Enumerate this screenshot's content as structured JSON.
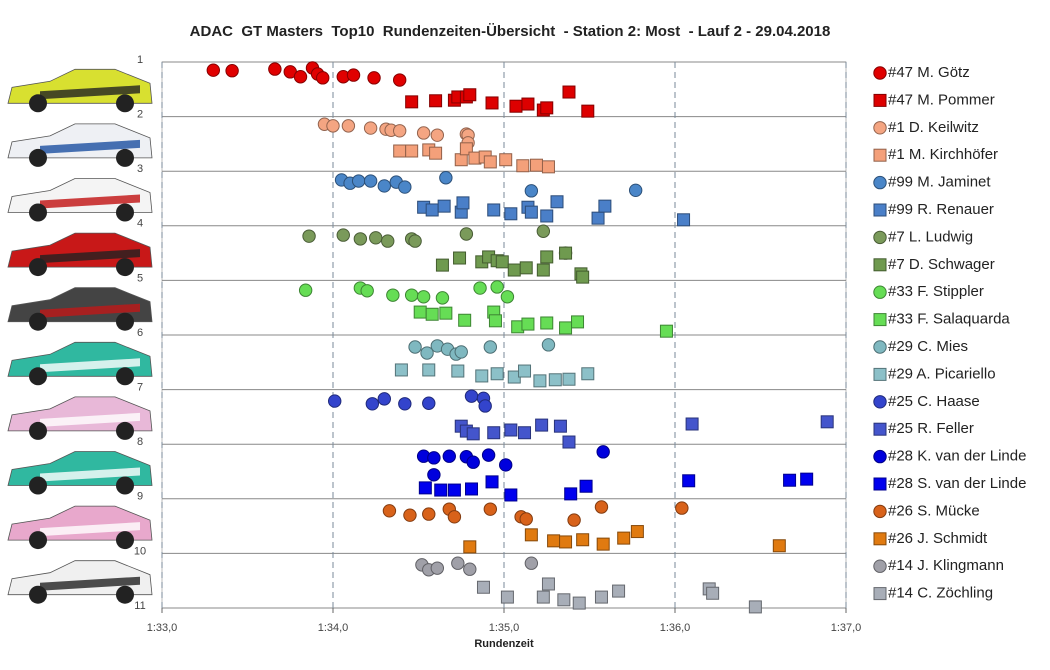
{
  "chart_data": {
    "type": "scatter",
    "title": "ADAC  GT Masters  Top10  Rundenzeiten-Übersicht  - Station 2: Most  - Lauf 2 - 29.04.2018",
    "x_label": "Rundenzeit",
    "xlim": [
      93,
      97
    ],
    "xticks": [
      {
        "value": 93,
        "label": "1:33,0"
      },
      {
        "value": 94,
        "label": "1:34,0"
      },
      {
        "value": 95,
        "label": "1:35,0"
      },
      {
        "value": 96,
        "label": "1:36,0"
      },
      {
        "value": 97,
        "label": "1:37,0"
      }
    ],
    "ylim": [
      1,
      11
    ],
    "y_inverted": true,
    "yticks": [
      1,
      2,
      3,
      4,
      5,
      6,
      7,
      8,
      9,
      10,
      11
    ],
    "x_grid": true,
    "y_grid": true,
    "legend": "right",
    "series": [
      {
        "name": "#47 M. Götz",
        "color": "#e00000",
        "marker": "circle",
        "x": [
          93.3,
          93.41,
          93.66,
          93.75,
          93.81,
          93.88,
          93.91,
          93.94,
          94.06,
          94.12,
          94.24,
          94.39
        ],
        "values": [
          1.15,
          1.16,
          1.13,
          1.18,
          1.27,
          1.11,
          1.22,
          1.29,
          1.27,
          1.24,
          1.29,
          1.33
        ]
      },
      {
        "name": "#47 M. Pommer",
        "color": "#dd0000",
        "marker": "square",
        "x": [
          94.46,
          94.6,
          94.71,
          94.73,
          94.78,
          94.8,
          94.93,
          95.07,
          95.14,
          95.23,
          95.25,
          95.38,
          95.49
        ],
        "values": [
          1.73,
          1.71,
          1.7,
          1.64,
          1.64,
          1.6,
          1.75,
          1.81,
          1.77,
          1.88,
          1.84,
          1.55,
          1.9
        ]
      },
      {
        "name": "#1 D. Keilwitz",
        "color": "#f4a582",
        "marker": "circle",
        "x": [
          93.95,
          94.0,
          94.09,
          94.22,
          94.31,
          94.34,
          94.39,
          94.53,
          94.61,
          94.78,
          94.79,
          94.79
        ],
        "values": [
          2.14,
          2.17,
          2.17,
          2.21,
          2.23,
          2.25,
          2.26,
          2.3,
          2.34,
          2.32,
          2.34,
          2.48
        ]
      },
      {
        "name": "#1 M. Kirchhöfer",
        "color": "#f4a07a",
        "marker": "square",
        "x": [
          94.39,
          94.46,
          94.56,
          94.6,
          94.75,
          94.78,
          94.83,
          94.89,
          94.92,
          95.01,
          95.11,
          95.19,
          95.26
        ],
        "values": [
          2.63,
          2.63,
          2.61,
          2.67,
          2.79,
          2.59,
          2.76,
          2.74,
          2.83,
          2.79,
          2.9,
          2.89,
          2.92
        ]
      },
      {
        "name": "#99 M. Jaminet",
        "color": "#4a86c8",
        "marker": "circle",
        "x": [
          94.05,
          94.1,
          94.15,
          94.22,
          94.3,
          94.37,
          94.42,
          94.66,
          95.16,
          95.77
        ],
        "values": [
          3.16,
          3.22,
          3.18,
          3.18,
          3.27,
          3.2,
          3.29,
          3.12,
          3.36,
          3.35
        ]
      },
      {
        "name": "#99 R. Renauer",
        "color": "#4a7fc8",
        "marker": "square",
        "x": [
          94.53,
          94.58,
          94.65,
          94.75,
          94.76,
          94.94,
          95.04,
          95.14,
          95.16,
          95.25,
          95.31,
          95.55,
          95.59,
          96.05
        ],
        "values": [
          3.66,
          3.71,
          3.64,
          3.75,
          3.58,
          3.71,
          3.78,
          3.66,
          3.75,
          3.82,
          3.56,
          3.86,
          3.64,
          3.89
        ]
      },
      {
        "name": "#7 L. Ludwig",
        "color": "#7a9a5a",
        "marker": "circle",
        "x": [
          93.86,
          94.06,
          94.16,
          94.25,
          94.32,
          94.46,
          94.48,
          94.78,
          95.23,
          95.36
        ],
        "values": [
          4.19,
          4.17,
          4.24,
          4.22,
          4.28,
          4.24,
          4.28,
          4.15,
          4.1,
          4.5
        ]
      },
      {
        "name": "#7 D. Schwager",
        "color": "#6f9a4f",
        "marker": "square",
        "x": [
          94.64,
          94.74,
          94.87,
          94.91,
          94.96,
          94.99,
          95.06,
          95.13,
          95.23,
          95.25,
          95.36,
          95.45,
          95.46
        ],
        "values": [
          4.72,
          4.59,
          4.66,
          4.57,
          4.64,
          4.66,
          4.81,
          4.77,
          4.81,
          4.57,
          4.5,
          4.88,
          4.94
        ]
      },
      {
        "name": "#33 F. Stippler",
        "color": "#66dd55",
        "marker": "circle",
        "x": [
          93.84,
          94.16,
          94.2,
          94.35,
          94.46,
          94.53,
          94.64,
          94.86,
          94.96,
          95.02
        ],
        "values": [
          5.18,
          5.14,
          5.19,
          5.27,
          5.27,
          5.3,
          5.32,
          5.14,
          5.12,
          5.3
        ]
      },
      {
        "name": "#33 F. Salaquarda",
        "color": "#66dd55",
        "marker": "square",
        "x": [
          94.51,
          94.58,
          94.66,
          94.77,
          94.94,
          94.95,
          95.08,
          95.14,
          95.25,
          95.36,
          95.43,
          95.95
        ],
        "values": [
          5.58,
          5.62,
          5.6,
          5.73,
          5.58,
          5.74,
          5.85,
          5.8,
          5.78,
          5.87,
          5.76,
          5.93
        ]
      },
      {
        "name": "#29 C. Mies",
        "color": "#7fb8c0",
        "marker": "circle",
        "x": [
          94.48,
          94.55,
          94.61,
          94.67,
          94.72,
          94.75,
          94.92,
          95.26
        ],
        "values": [
          6.22,
          6.33,
          6.2,
          6.26,
          6.35,
          6.31,
          6.22,
          6.18
        ]
      },
      {
        "name": "#29 A. Picariello",
        "color": "#8cc0c8",
        "marker": "square",
        "x": [
          94.4,
          94.56,
          94.73,
          94.87,
          94.96,
          95.06,
          95.12,
          95.21,
          95.3,
          95.38,
          95.49
        ],
        "values": [
          6.64,
          6.64,
          6.66,
          6.75,
          6.71,
          6.77,
          6.66,
          6.84,
          6.82,
          6.81,
          6.71
        ]
      },
      {
        "name": "#25 C. Haase",
        "color": "#3344cc",
        "marker": "circle",
        "x": [
          94.01,
          94.23,
          94.3,
          94.42,
          94.56,
          94.81,
          94.88,
          94.89
        ],
        "values": [
          7.21,
          7.26,
          7.17,
          7.26,
          7.25,
          7.12,
          7.16,
          7.3
        ]
      },
      {
        "name": "#25 R. Feller",
        "color": "#4455cc",
        "marker": "square",
        "x": [
          94.75,
          94.78,
          94.82,
          94.94,
          95.04,
          95.12,
          95.22,
          95.33,
          95.38,
          96.1,
          96.89
        ],
        "values": [
          7.67,
          7.76,
          7.81,
          7.79,
          7.74,
          7.79,
          7.65,
          7.67,
          7.96,
          7.63,
          7.59
        ]
      },
      {
        "name": "#28 K. van der Linde",
        "color": "#0000dd",
        "marker": "circle",
        "x": [
          94.53,
          94.59,
          94.68,
          94.78,
          94.82,
          94.91,
          95.01,
          95.58,
          94.59
        ],
        "values": [
          8.22,
          8.25,
          8.22,
          8.23,
          8.33,
          8.2,
          8.38,
          8.14,
          8.56
        ]
      },
      {
        "name": "#28 S. van der Linde",
        "color": "#0000ee",
        "marker": "square",
        "x": [
          94.54,
          94.63,
          94.71,
          94.81,
          94.93,
          95.04,
          95.39,
          95.48,
          96.08,
          96.67,
          96.77
        ],
        "values": [
          8.8,
          8.84,
          8.84,
          8.82,
          8.69,
          8.93,
          8.91,
          8.77,
          8.67,
          8.66,
          8.64
        ]
      },
      {
        "name": "#26 S. Mücke",
        "color": "#d8621a",
        "marker": "circle",
        "x": [
          94.33,
          94.45,
          94.56,
          94.68,
          94.71,
          94.92,
          95.1,
          95.13,
          95.41,
          95.57,
          96.04
        ],
        "values": [
          9.22,
          9.3,
          9.28,
          9.19,
          9.33,
          9.19,
          9.33,
          9.37,
          9.39,
          9.15,
          9.17
        ]
      },
      {
        "name": "#26 J. Schmidt",
        "color": "#e07a10",
        "marker": "square",
        "x": [
          94.8,
          95.16,
          95.29,
          95.36,
          95.46,
          95.58,
          95.7,
          95.78,
          96.61
        ],
        "values": [
          9.88,
          9.66,
          9.77,
          9.79,
          9.75,
          9.83,
          9.72,
          9.6,
          9.86
        ]
      },
      {
        "name": "#14 J. Klingmann",
        "color": "#a0a0a8",
        "marker": "circle",
        "x": [
          94.52,
          94.56,
          94.61,
          94.73,
          94.8,
          95.16
        ],
        "values": [
          10.21,
          10.3,
          10.27,
          10.18,
          10.29,
          10.18
        ]
      },
      {
        "name": "#14 C. Zöchling",
        "color": "#a8aeb8",
        "marker": "square",
        "x": [
          94.88,
          95.02,
          95.23,
          95.26,
          95.35,
          95.44,
          95.57,
          95.67,
          96.2,
          96.22,
          96.47
        ],
        "values": [
          10.62,
          10.8,
          10.8,
          10.56,
          10.85,
          10.91,
          10.8,
          10.69,
          10.65,
          10.73,
          10.98
        ]
      }
    ]
  }
}
